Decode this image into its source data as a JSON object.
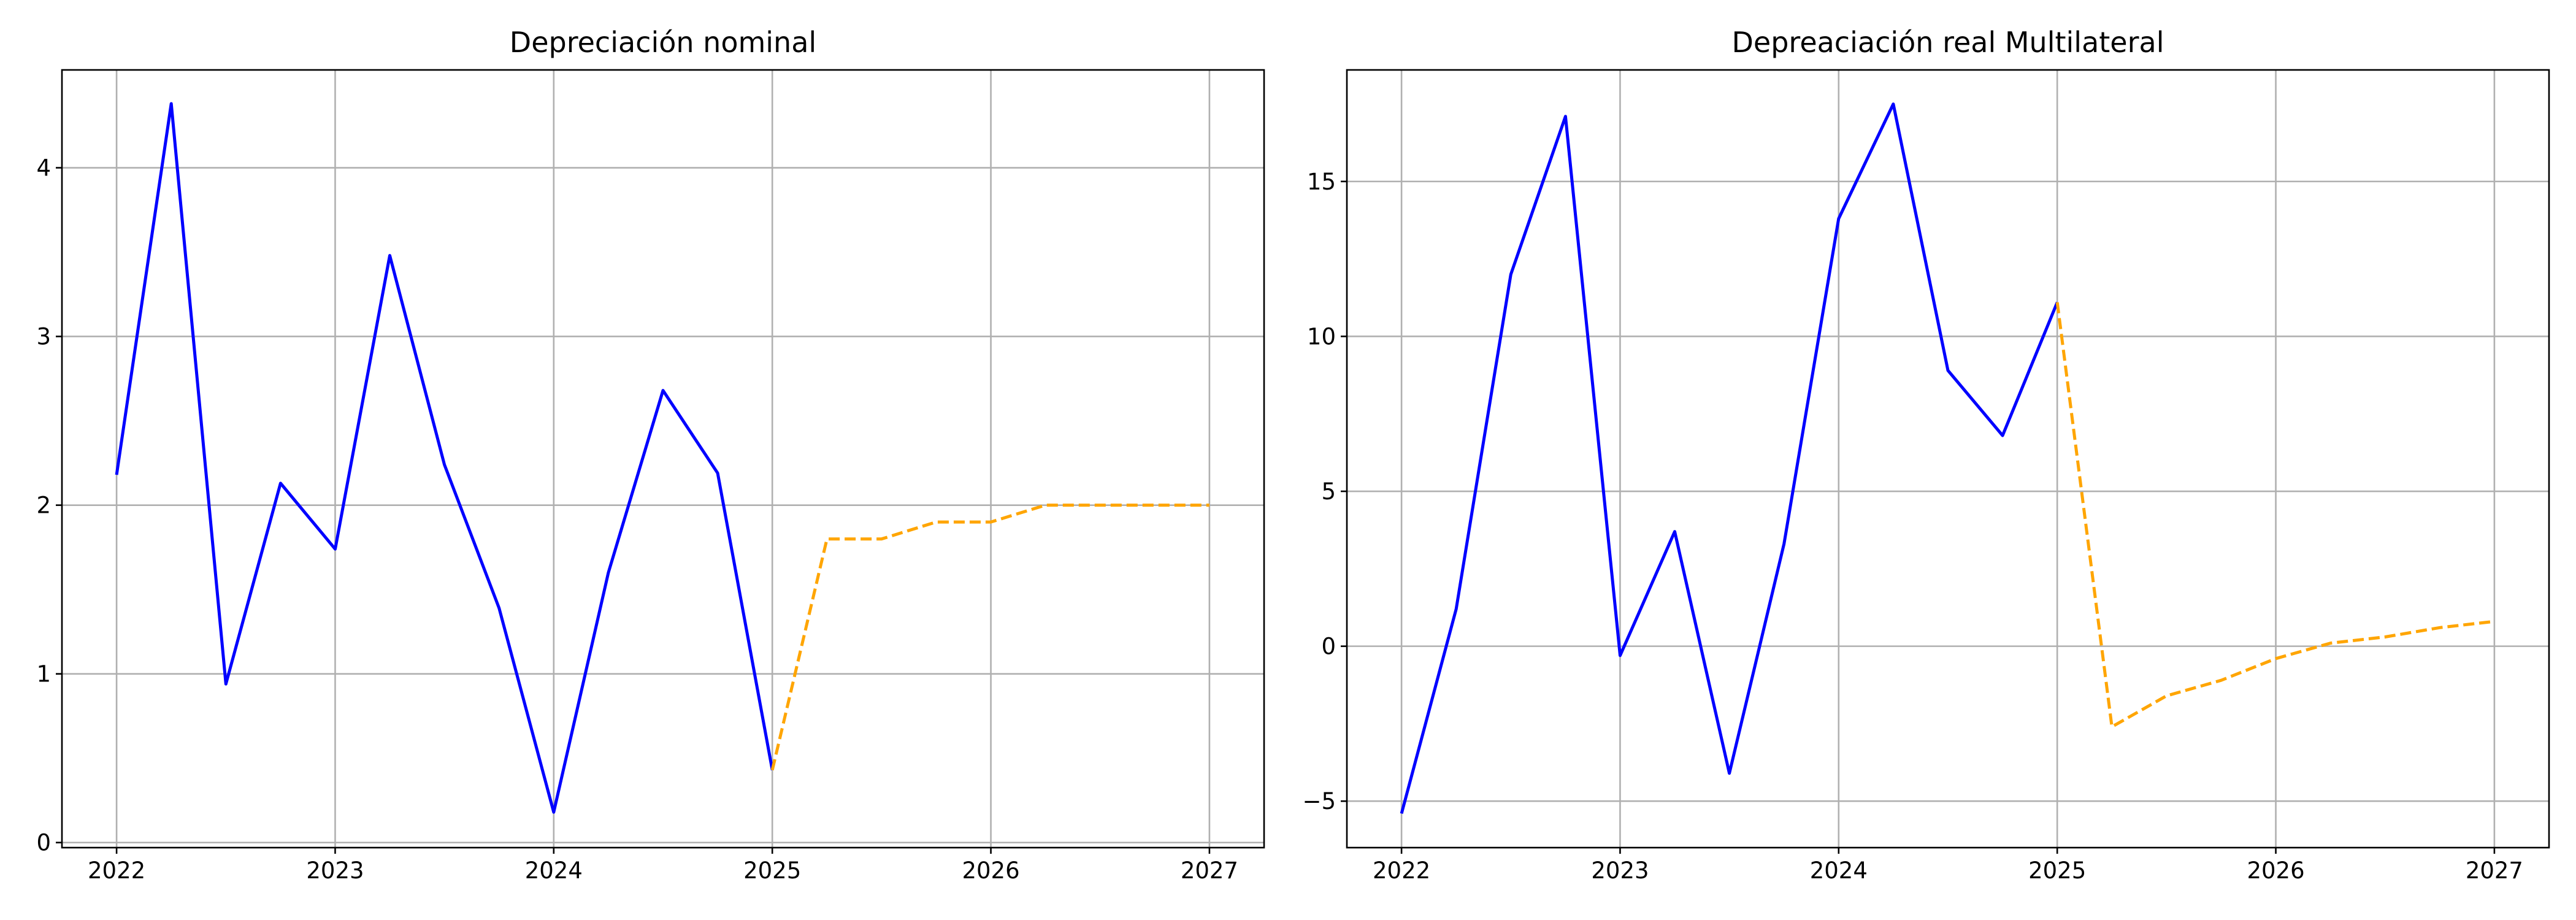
{
  "chart_data": [
    {
      "type": "line",
      "title": "Depreciación nominal",
      "xlabel": "",
      "ylabel": "",
      "grid": true,
      "xlim": [
        2021.75,
        2027.25
      ],
      "ylim": [
        -0.03,
        4.58
      ],
      "xticks": [
        2022,
        2023,
        2024,
        2025,
        2026,
        2027
      ],
      "xtick_labels": [
        "2022",
        "2023",
        "2024",
        "2025",
        "2026",
        "2027"
      ],
      "yticks": [
        0,
        1,
        2,
        3,
        4
      ],
      "ytick_labels": [
        "0",
        "1",
        "2",
        "3",
        "4"
      ],
      "series": [
        {
          "color": "#0000ff",
          "style": "solid",
          "x": [
            2022.0,
            2022.25,
            2022.5,
            2022.75,
            2023.0,
            2023.25,
            2023.5,
            2023.75,
            2024.0,
            2024.25,
            2024.5,
            2024.75,
            2025.0
          ],
          "y": [
            2.18,
            4.38,
            0.94,
            2.13,
            1.74,
            3.48,
            2.24,
            1.39,
            0.18,
            1.6,
            2.68,
            2.19,
            0.43
          ]
        },
        {
          "color": "#ffa500",
          "style": "dashed",
          "x": [
            2025.0,
            2025.25,
            2025.5,
            2025.75,
            2026.0,
            2026.25,
            2026.5,
            2026.75,
            2027.0
          ],
          "y": [
            0.43,
            1.8,
            1.8,
            1.9,
            1.9,
            2.0,
            2.0,
            2.0,
            2.0
          ]
        }
      ]
    },
    {
      "type": "line",
      "title": "Depreaciación real Multilateral",
      "xlabel": "",
      "ylabel": "",
      "grid": true,
      "xlim": [
        2021.75,
        2027.25
      ],
      "ylim": [
        -6.5,
        18.6
      ],
      "xticks": [
        2022,
        2023,
        2024,
        2025,
        2026,
        2027
      ],
      "xtick_labels": [
        "2022",
        "2023",
        "2024",
        "2025",
        "2026",
        "2027"
      ],
      "yticks": [
        -5,
        0,
        5,
        10,
        15
      ],
      "ytick_labels": [
        "−5",
        "0",
        "5",
        "10",
        "15"
      ],
      "series": [
        {
          "color": "#0000ff",
          "style": "solid",
          "x": [
            2022.0,
            2022.25,
            2022.5,
            2022.75,
            2023.0,
            2023.25,
            2023.5,
            2023.75,
            2024.0,
            2024.25,
            2024.5,
            2024.75,
            2025.0
          ],
          "y": [
            -5.4,
            1.2,
            12.0,
            17.1,
            -0.3,
            3.7,
            -4.1,
            3.3,
            13.8,
            17.5,
            8.9,
            6.8,
            11.1
          ]
        },
        {
          "color": "#ffa500",
          "style": "dashed",
          "x": [
            2025.0,
            2025.25,
            2025.5,
            2025.75,
            2026.0,
            2026.25,
            2026.5,
            2026.75,
            2027.0
          ],
          "y": [
            11.1,
            -2.6,
            -1.6,
            -1.1,
            -0.4,
            0.1,
            0.3,
            0.6,
            0.8
          ]
        }
      ]
    }
  ]
}
